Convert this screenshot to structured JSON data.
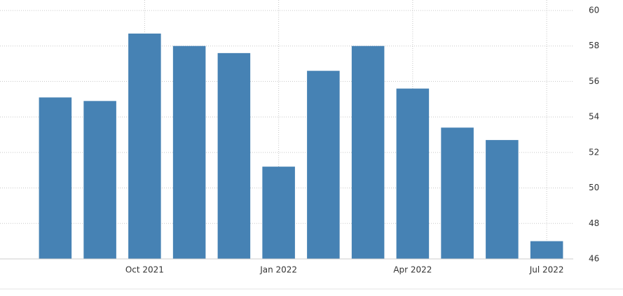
{
  "chart_data": {
    "type": "bar",
    "categories": [
      null,
      null,
      "Oct 2021",
      null,
      null,
      "Jan 2022",
      null,
      null,
      "Apr 2022",
      null,
      null,
      "Jul 2022"
    ],
    "values": [
      55.1,
      54.9,
      58.7,
      58.0,
      57.6,
      51.2,
      56.6,
      58.0,
      55.6,
      53.4,
      52.7,
      47.0
    ],
    "color": "#4682b4",
    "ylim": [
      46,
      60
    ],
    "yticks": [
      46,
      48,
      50,
      52,
      54,
      56,
      58,
      60
    ],
    "grid": true
  }
}
